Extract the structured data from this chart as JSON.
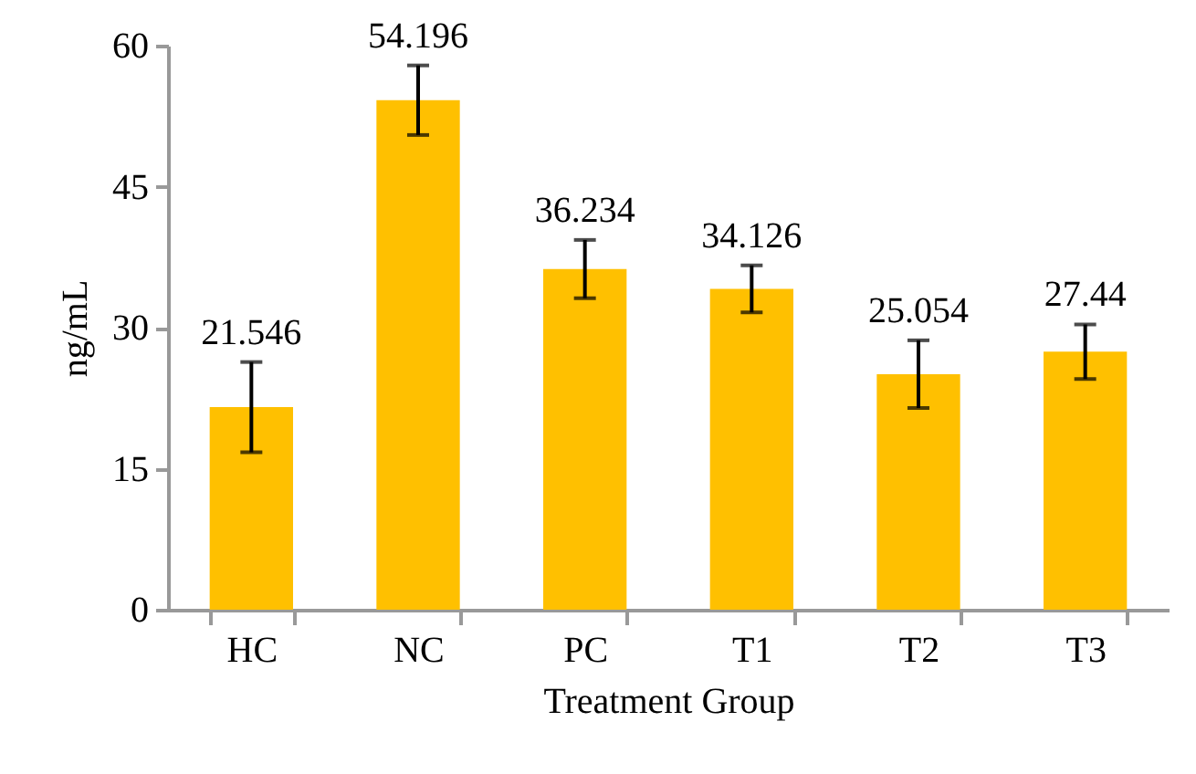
{
  "chart_data": {
    "type": "bar",
    "xlabel": "Treatment Group",
    "ylabel": "ng/mL",
    "categories": [
      "HC",
      "NC",
      "PC",
      "T1",
      "T2",
      "T3"
    ],
    "values": [
      21.546,
      54.196,
      36.234,
      34.126,
      25.054,
      27.44
    ],
    "errors": [
      4.8,
      3.7,
      3.1,
      2.5,
      3.6,
      2.9
    ],
    "color": "#ffc000",
    "data_labels": true,
    "grid": false,
    "ylim": [
      0,
      60
    ],
    "yticks": [
      0,
      15,
      30,
      45,
      60
    ]
  }
}
